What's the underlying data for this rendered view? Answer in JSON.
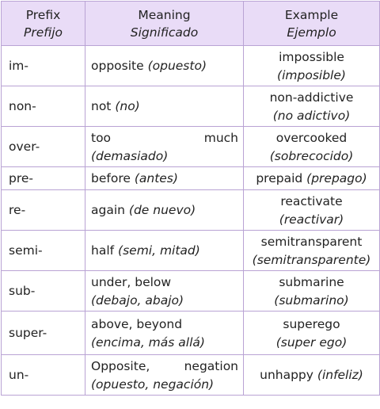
{
  "header": {
    "prefix_en": "Prefix",
    "prefix_es": "Prefijo",
    "meaning_en": "Meaning",
    "meaning_es": "Significado",
    "example_en": "Example",
    "example_es": "Ejemplo"
  },
  "rows": [
    {
      "prefix": "im-",
      "meaning": "opposite",
      "meaning_es": "(opuesto)",
      "example": "impossible",
      "example_es": "(imposible)"
    },
    {
      "prefix": "non-",
      "meaning": "not",
      "meaning_es": "(no)",
      "example": "non-addictive",
      "example_es": "(no adictivo)"
    },
    {
      "prefix": "over-",
      "meaning_w1": "too",
      "meaning_w2": "much",
      "meaning_es": "(demasiado)",
      "example": "overcooked",
      "example_es": "(sobrecocido)"
    },
    {
      "prefix": "pre-",
      "meaning": "before",
      "meaning_es": "(antes)",
      "example": "prepaid",
      "example_es": "(prepago)"
    },
    {
      "prefix": "re-",
      "meaning": "again",
      "meaning_es": "(de nuevo)",
      "example": "reactivate",
      "example_es": "(reactivar)"
    },
    {
      "prefix": "semi-",
      "meaning": "half",
      "meaning_es": "(semi, mitad)",
      "example": "semitransparent",
      "example_es": "(semitransparente)"
    },
    {
      "prefix": "sub-",
      "meaning": "under, below",
      "meaning_es": "(debajo, abajo)",
      "example": "submarine",
      "example_es": "(submarino)"
    },
    {
      "prefix": "super-",
      "meaning": "above, beyond",
      "meaning_es": "(encima, más allá)",
      "example": "superego",
      "example_es": "(super ego)"
    },
    {
      "prefix": "un-",
      "meaning_w1": "Opposite,",
      "meaning_w2": "negation",
      "meaning_es": "(opuesto, negación)",
      "example": "unhappy",
      "example_es": "(infeliz)"
    }
  ]
}
